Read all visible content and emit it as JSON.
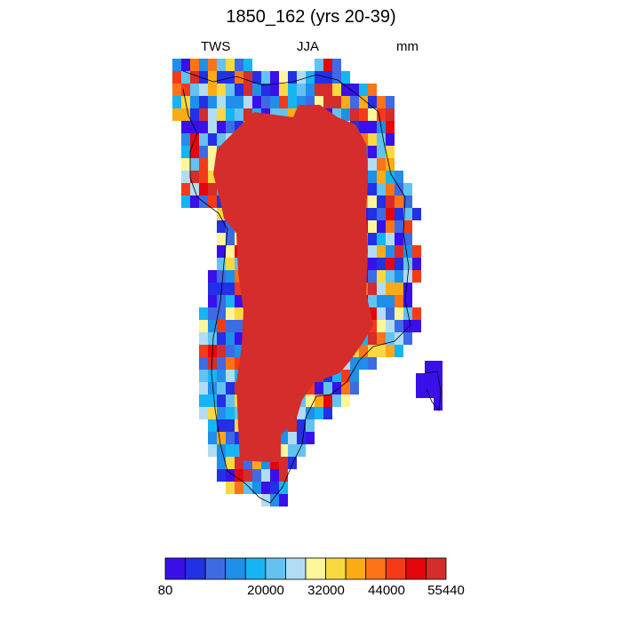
{
  "title": "1850_162 (yrs 20-39)",
  "left_label": "TWS",
  "center_label": "JJA",
  "right_label": "mm",
  "colorbar": {
    "colors": [
      "#3a10ea",
      "#2230e6",
      "#3d6be4",
      "#1f8fea",
      "#17b4f3",
      "#63c2ef",
      "#b2dcf3",
      "#fff59a",
      "#f9d840",
      "#fbab16",
      "#fb7417",
      "#f53a1a",
      "#e5060c",
      "#d42d2b"
    ],
    "tick_labels": [
      "80",
      "20000",
      "32000",
      "44000",
      "55440"
    ]
  },
  "chart_data": {
    "type": "heatmap",
    "title": "1850_162 (yrs 20-39)",
    "variable": "TWS",
    "season": "JJA",
    "units": "mm",
    "interior_value_range": [
      55440,
      null
    ],
    "colorbar_levels_labeled": [
      80,
      20000,
      32000,
      44000,
      55440
    ],
    "colorbar_bins": 14,
    "colorbar_bin_colors": [
      "#3a10ea",
      "#2230e6",
      "#3d6be4",
      "#1f8fea",
      "#17b4f3",
      "#63c2ef",
      "#b2dcf3",
      "#fff59a",
      "#f9d840",
      "#fbab16",
      "#fb7417",
      "#f53a1a",
      "#e5060c",
      "#d42d2b"
    ]
  }
}
